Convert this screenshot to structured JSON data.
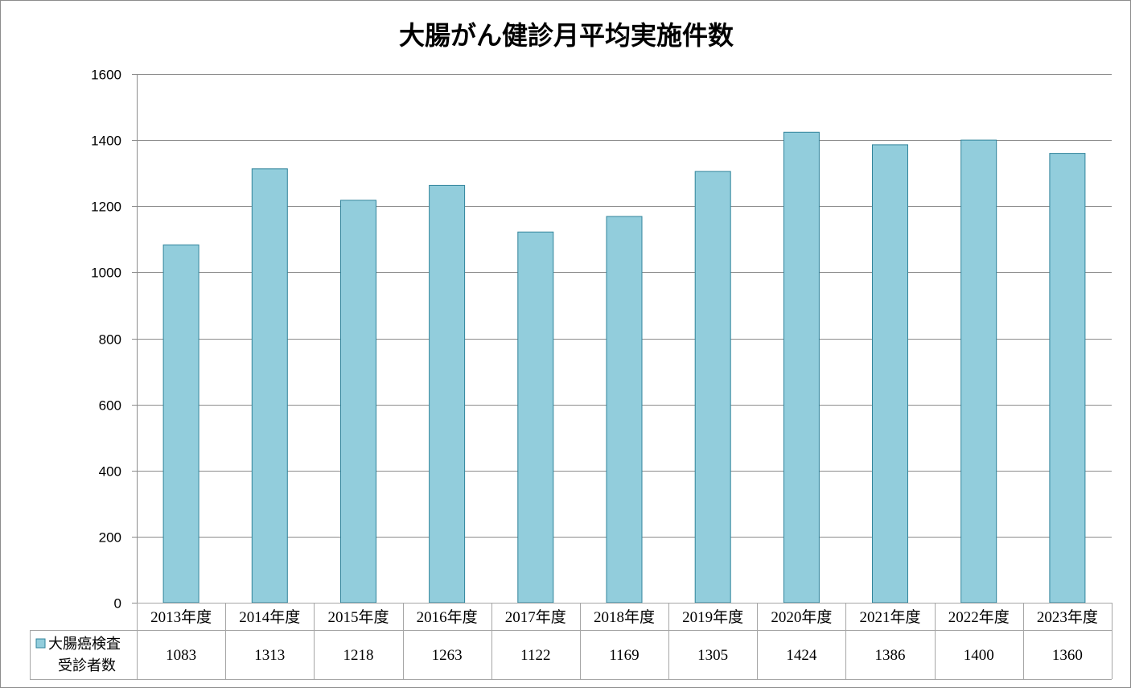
{
  "chart_data": {
    "type": "bar",
    "title": "大腸がん健診月平均実施件数",
    "categories": [
      "2013年度",
      "2014年度",
      "2015年度",
      "2016年度",
      "2017年度",
      "2018年度",
      "2019年度",
      "2020年度",
      "2021年度",
      "2022年度",
      "2023年度"
    ],
    "series": [
      {
        "name_lines": [
          "大腸癌検査",
          "受診者数"
        ],
        "values": [
          1083,
          1313,
          1218,
          1263,
          1122,
          1169,
          1305,
          1424,
          1386,
          1400,
          1360
        ]
      }
    ],
    "ylim": [
      0,
      1600
    ],
    "yticks": [
      0,
      200,
      400,
      600,
      800,
      1000,
      1200,
      1400,
      1600
    ],
    "grid": true,
    "legend": "data-table",
    "colors": {
      "bar_fill": "#92CDDC",
      "bar_stroke": "#31849B",
      "grid": "#8c8c8c",
      "table_line": "#a6a6a6"
    }
  }
}
